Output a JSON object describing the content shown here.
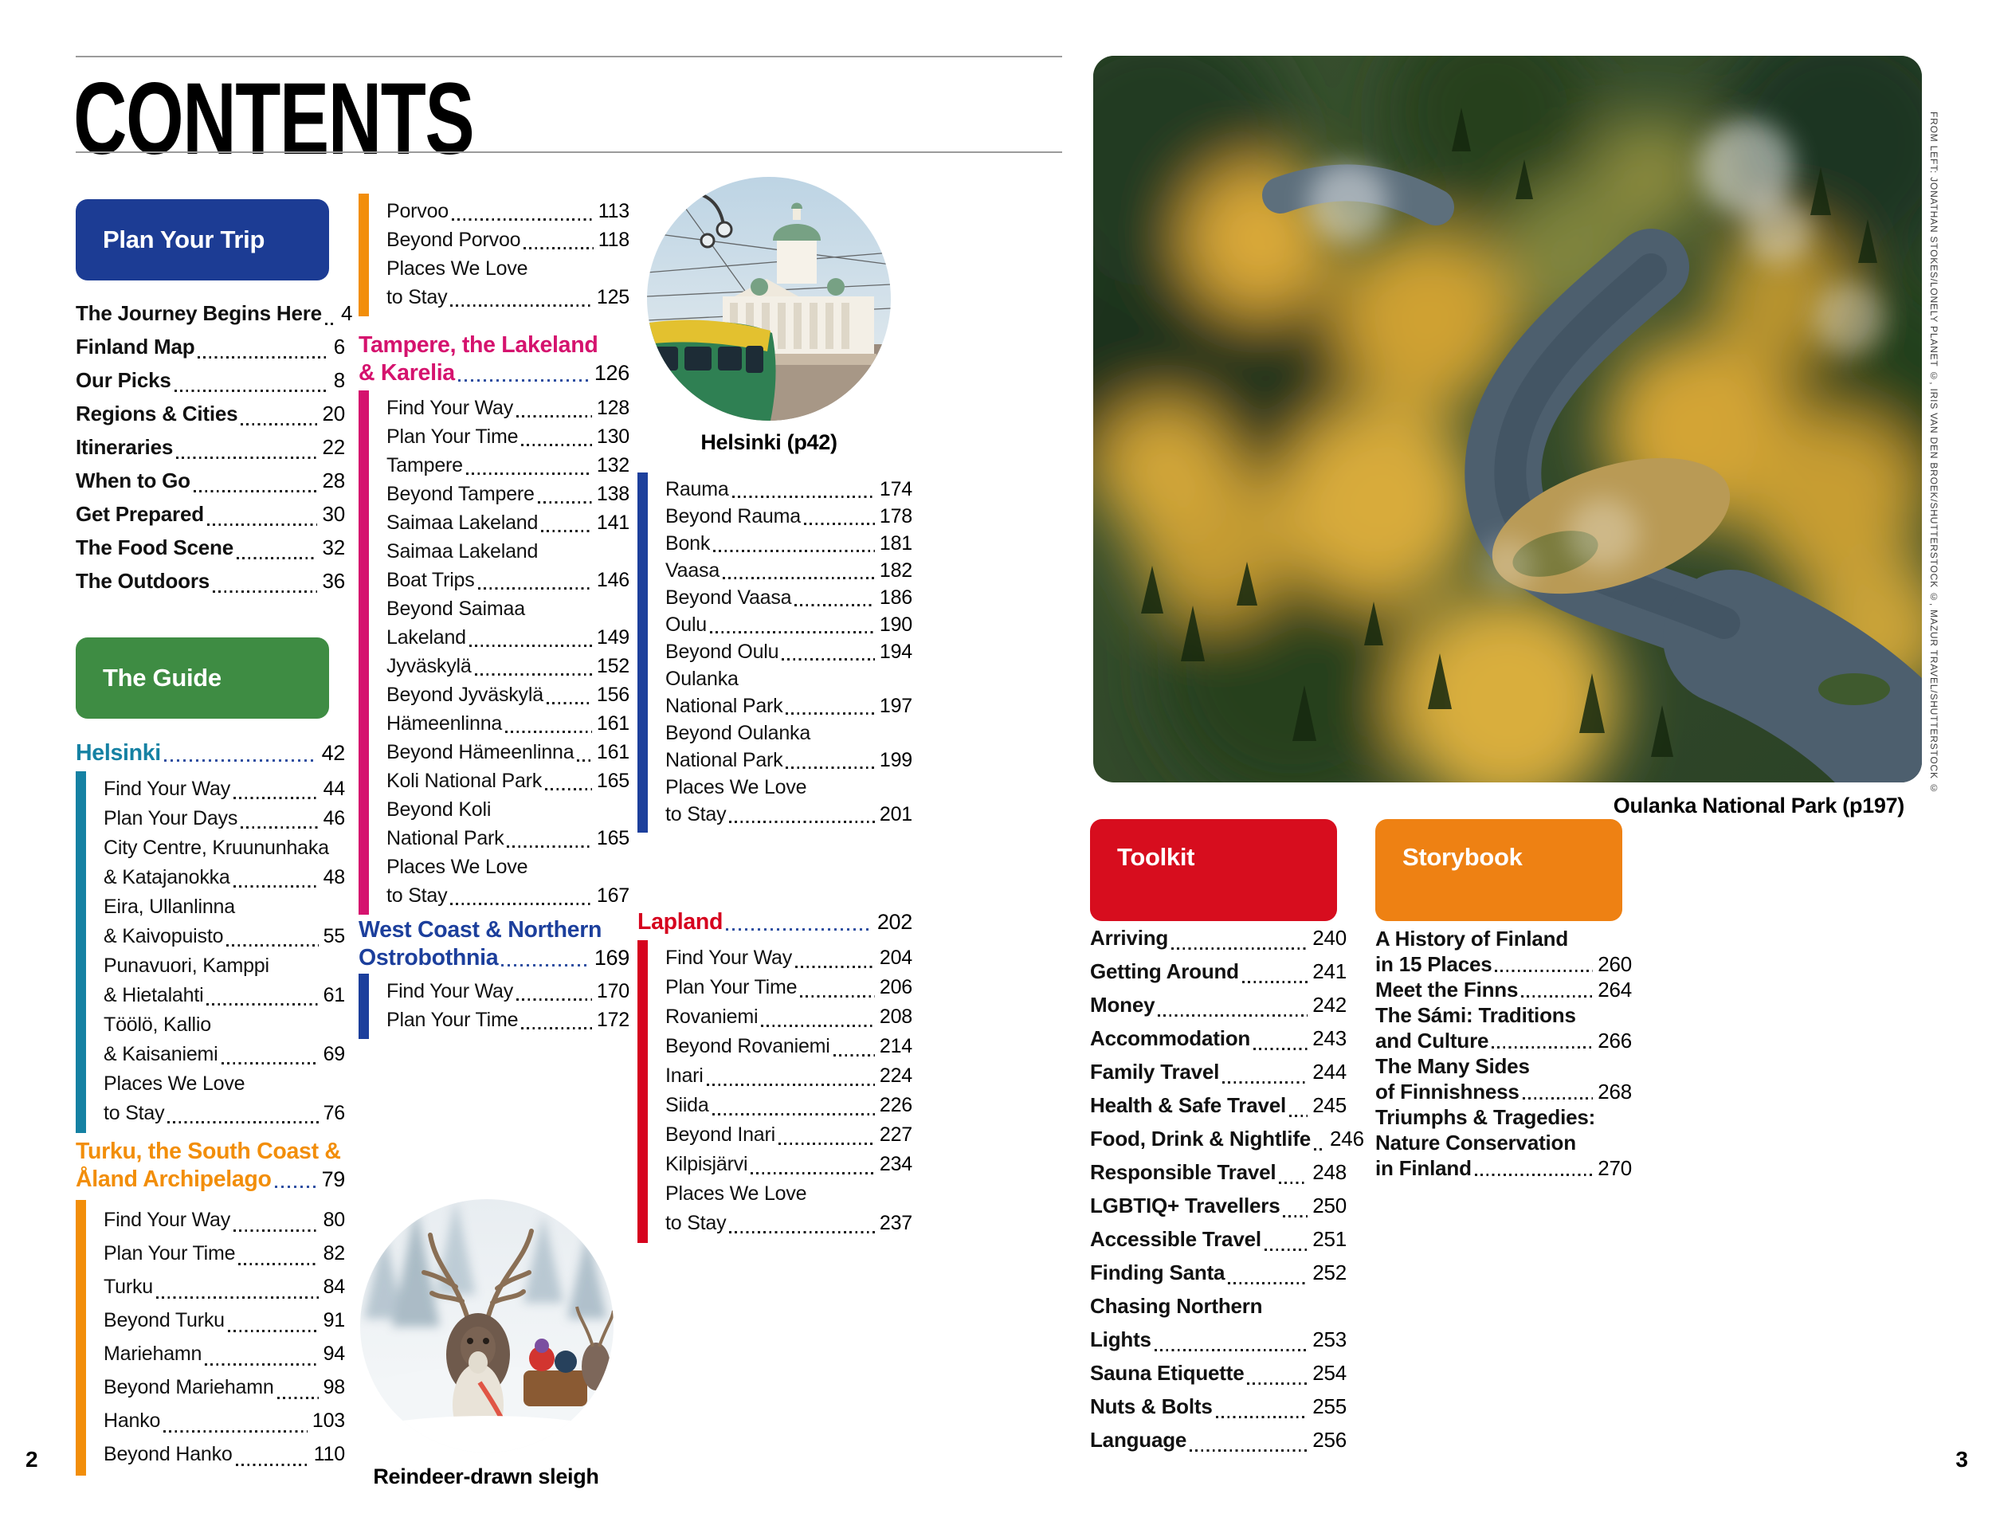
{
  "page": {
    "title": "CONTENTS",
    "left_page_number": "2",
    "right_page_number": "3"
  },
  "colors": {
    "plan": "#1C3C94",
    "guide": "#3E8C43",
    "helsinki": "#1581A3",
    "turku": "#F28E0A",
    "tampere": "#D5136E",
    "west": "#1C3F9C",
    "lapland": "#D6021E",
    "toolkit": "#D70D1E",
    "storybook": "#EE8113",
    "leader": "#2D4FA1"
  },
  "boxes": {
    "plan": "Plan Your Trip",
    "guide": "The Guide",
    "toolkit": "Toolkit",
    "storybook": "Storybook"
  },
  "col1": {
    "plan_items": [
      {
        "lines": [
          "The Journey Begins Here"
        ],
        "page": "4"
      },
      {
        "lines": [
          "Finland Map"
        ],
        "page": "6"
      },
      {
        "lines": [
          "Our Picks"
        ],
        "page": "8"
      },
      {
        "lines": [
          "Regions & Cities"
        ],
        "page": "20"
      },
      {
        "lines": [
          "Itineraries"
        ],
        "page": "22"
      },
      {
        "lines": [
          "When to Go"
        ],
        "page": "28"
      },
      {
        "lines": [
          "Get Prepared"
        ],
        "page": "30"
      },
      {
        "lines": [
          "The Food Scene"
        ],
        "page": "32"
      },
      {
        "lines": [
          "The Outdoors"
        ],
        "page": "36"
      }
    ],
    "helsinki": {
      "title": "Helsinki",
      "page": "42",
      "items": [
        {
          "lines": [
            "Find Your Way"
          ],
          "page": "44"
        },
        {
          "lines": [
            "Plan Your Days"
          ],
          "page": "46"
        },
        {
          "lines": [
            "City Centre, Kruununhaka",
            "& Katajanokka"
          ],
          "page": "48"
        },
        {
          "lines": [
            "Eira, Ullanlinna",
            "& Kaivopuisto"
          ],
          "page": "55"
        },
        {
          "lines": [
            "Punavuori, Kamppi",
            "& Hietalahti"
          ],
          "page": "61"
        },
        {
          "lines": [
            "Töölö, Kallio",
            "& Kaisaniemi"
          ],
          "page": "69"
        },
        {
          "lines": [
            "Places We Love",
            "to Stay"
          ],
          "page": "76"
        }
      ]
    },
    "turku": {
      "title_lines": [
        "Turku, the South Coast &",
        "Åland Archipelago"
      ],
      "page": "79",
      "items": [
        {
          "lines": [
            "Find Your Way"
          ],
          "page": "80"
        },
        {
          "lines": [
            "Plan Your Time"
          ],
          "page": "82"
        },
        {
          "lines": [
            "Turku"
          ],
          "page": "84"
        },
        {
          "lines": [
            "Beyond Turku"
          ],
          "page": "91"
        },
        {
          "lines": [
            "Mariehamn"
          ],
          "page": "94"
        },
        {
          "lines": [
            "Beyond Mariehamn"
          ],
          "page": "98"
        },
        {
          "lines": [
            "Hanko"
          ],
          "page": "103"
        },
        {
          "lines": [
            "Beyond Hanko"
          ],
          "page": "110"
        }
      ]
    }
  },
  "col2": {
    "turku_cont_items": [
      {
        "lines": [
          "Porvoo"
        ],
        "page": "113"
      },
      {
        "lines": [
          "Beyond Porvoo"
        ],
        "page": "118"
      },
      {
        "lines": [
          "Places We Love",
          "to Stay"
        ],
        "page": "125"
      }
    ],
    "tampere": {
      "title_lines": [
        "Tampere, the Lakeland",
        "& Karelia"
      ],
      "page": "126",
      "items": [
        {
          "lines": [
            "Find Your Way"
          ],
          "page": "128"
        },
        {
          "lines": [
            "Plan Your Time"
          ],
          "page": "130"
        },
        {
          "lines": [
            "Tampere"
          ],
          "page": "132"
        },
        {
          "lines": [
            "Beyond Tampere"
          ],
          "page": "138"
        },
        {
          "lines": [
            "Saimaa Lakeland"
          ],
          "page": "141"
        },
        {
          "lines": [
            "Saimaa Lakeland",
            "Boat Trips"
          ],
          "page": "146"
        },
        {
          "lines": [
            "Beyond Saimaa",
            "Lakeland"
          ],
          "page": "149"
        },
        {
          "lines": [
            "Jyväskylä"
          ],
          "page": "152"
        },
        {
          "lines": [
            "Beyond Jyväskylä"
          ],
          "page": "156"
        },
        {
          "lines": [
            "Hämeenlinna"
          ],
          "page": "161"
        },
        {
          "lines": [
            "Beyond Hämeenlinna"
          ],
          "page": "161"
        },
        {
          "lines": [
            "Koli National Park"
          ],
          "page": "165"
        },
        {
          "lines": [
            "Beyond Koli",
            "National Park"
          ],
          "page": "165"
        },
        {
          "lines": [
            "Places We Love",
            "to Stay"
          ],
          "page": "167"
        }
      ]
    },
    "west_coast": {
      "title_lines": [
        "West Coast & Northern",
        "Ostrobothnia"
      ],
      "page": "169",
      "items": [
        {
          "lines": [
            "Find Your Way"
          ],
          "page": "170"
        },
        {
          "lines": [
            "Plan Your Time"
          ],
          "page": "172"
        }
      ]
    },
    "reindeer_caption": "Reindeer-drawn sleigh"
  },
  "col3": {
    "helsinki_caption": "Helsinki (p42)",
    "west_cont_items": [
      {
        "lines": [
          "Rauma"
        ],
        "page": "174"
      },
      {
        "lines": [
          "Beyond Rauma"
        ],
        "page": "178"
      },
      {
        "lines": [
          "Bonk"
        ],
        "page": "181"
      },
      {
        "lines": [
          "Vaasa"
        ],
        "page": "182"
      },
      {
        "lines": [
          "Beyond Vaasa"
        ],
        "page": "186"
      },
      {
        "lines": [
          "Oulu"
        ],
        "page": "190"
      },
      {
        "lines": [
          "Beyond Oulu"
        ],
        "page": "194"
      },
      {
        "lines": [
          "Oulanka",
          "National Park"
        ],
        "page": "197"
      },
      {
        "lines": [
          "Beyond Oulanka",
          "National Park"
        ],
        "page": "199"
      },
      {
        "lines": [
          "Places We Love",
          "to Stay"
        ],
        "page": "201"
      }
    ],
    "lapland": {
      "title": "Lapland",
      "page": "202",
      "items": [
        {
          "lines": [
            "Find Your Way"
          ],
          "page": "204"
        },
        {
          "lines": [
            "Plan Your Time"
          ],
          "page": "206"
        },
        {
          "lines": [
            "Rovaniemi"
          ],
          "page": "208"
        },
        {
          "lines": [
            "Beyond Rovaniemi"
          ],
          "page": "214"
        },
        {
          "lines": [
            "Inari"
          ],
          "page": "224"
        },
        {
          "lines": [
            "Siida"
          ],
          "page": "226"
        },
        {
          "lines": [
            "Beyond Inari"
          ],
          "page": "227"
        },
        {
          "lines": [
            "Kilpisjärvi"
          ],
          "page": "234"
        },
        {
          "lines": [
            "Places We Love",
            "to Stay"
          ],
          "page": "237"
        }
      ]
    }
  },
  "right": {
    "photo_credit": "FROM LEFT: JONATHAN STOKES/LONELY PLANET ©, IRIS VAN DEN BROEK/SHUTTERSTOCK ©, MAZUR TRAVEL/SHUTTERSTOCK ©",
    "photo_caption": "Oulanka National Park (p197)",
    "toolkit_items": [
      {
        "lines": [
          "Arriving"
        ],
        "page": "240"
      },
      {
        "lines": [
          "Getting Around"
        ],
        "page": "241"
      },
      {
        "lines": [
          "Money"
        ],
        "page": "242"
      },
      {
        "lines": [
          "Accommodation"
        ],
        "page": "243"
      },
      {
        "lines": [
          "Family Travel"
        ],
        "page": "244"
      },
      {
        "lines": [
          "Health & Safe Travel"
        ],
        "page": "245"
      },
      {
        "lines": [
          "Food, Drink & Nightlife"
        ],
        "page": "246"
      },
      {
        "lines": [
          "Responsible Travel"
        ],
        "page": "248"
      },
      {
        "lines": [
          "LGBTIQ+ Travellers"
        ],
        "page": "250"
      },
      {
        "lines": [
          "Accessible Travel"
        ],
        "page": "251"
      },
      {
        "lines": [
          "Finding Santa"
        ],
        "page": "252"
      },
      {
        "lines": [
          "Chasing Northern",
          "Lights"
        ],
        "page": "253"
      },
      {
        "lines": [
          "Sauna Etiquette"
        ],
        "page": "254"
      },
      {
        "lines": [
          "Nuts & Bolts"
        ],
        "page": "255"
      },
      {
        "lines": [
          "Language"
        ],
        "page": "256"
      }
    ],
    "storybook_items": [
      {
        "lines": [
          "A History of Finland",
          "in 15 Places"
        ],
        "page": "260"
      },
      {
        "lines": [
          "Meet the Finns"
        ],
        "page": "264"
      },
      {
        "lines": [
          "The Sámi: Traditions",
          "and Culture"
        ],
        "page": "266"
      },
      {
        "lines": [
          "The Many Sides",
          "of Finnishness"
        ],
        "page": "268"
      },
      {
        "lines": [
          "Triumphs & Tragedies:",
          "Nature Conservation",
          "in Finland"
        ],
        "page": "270"
      }
    ]
  }
}
